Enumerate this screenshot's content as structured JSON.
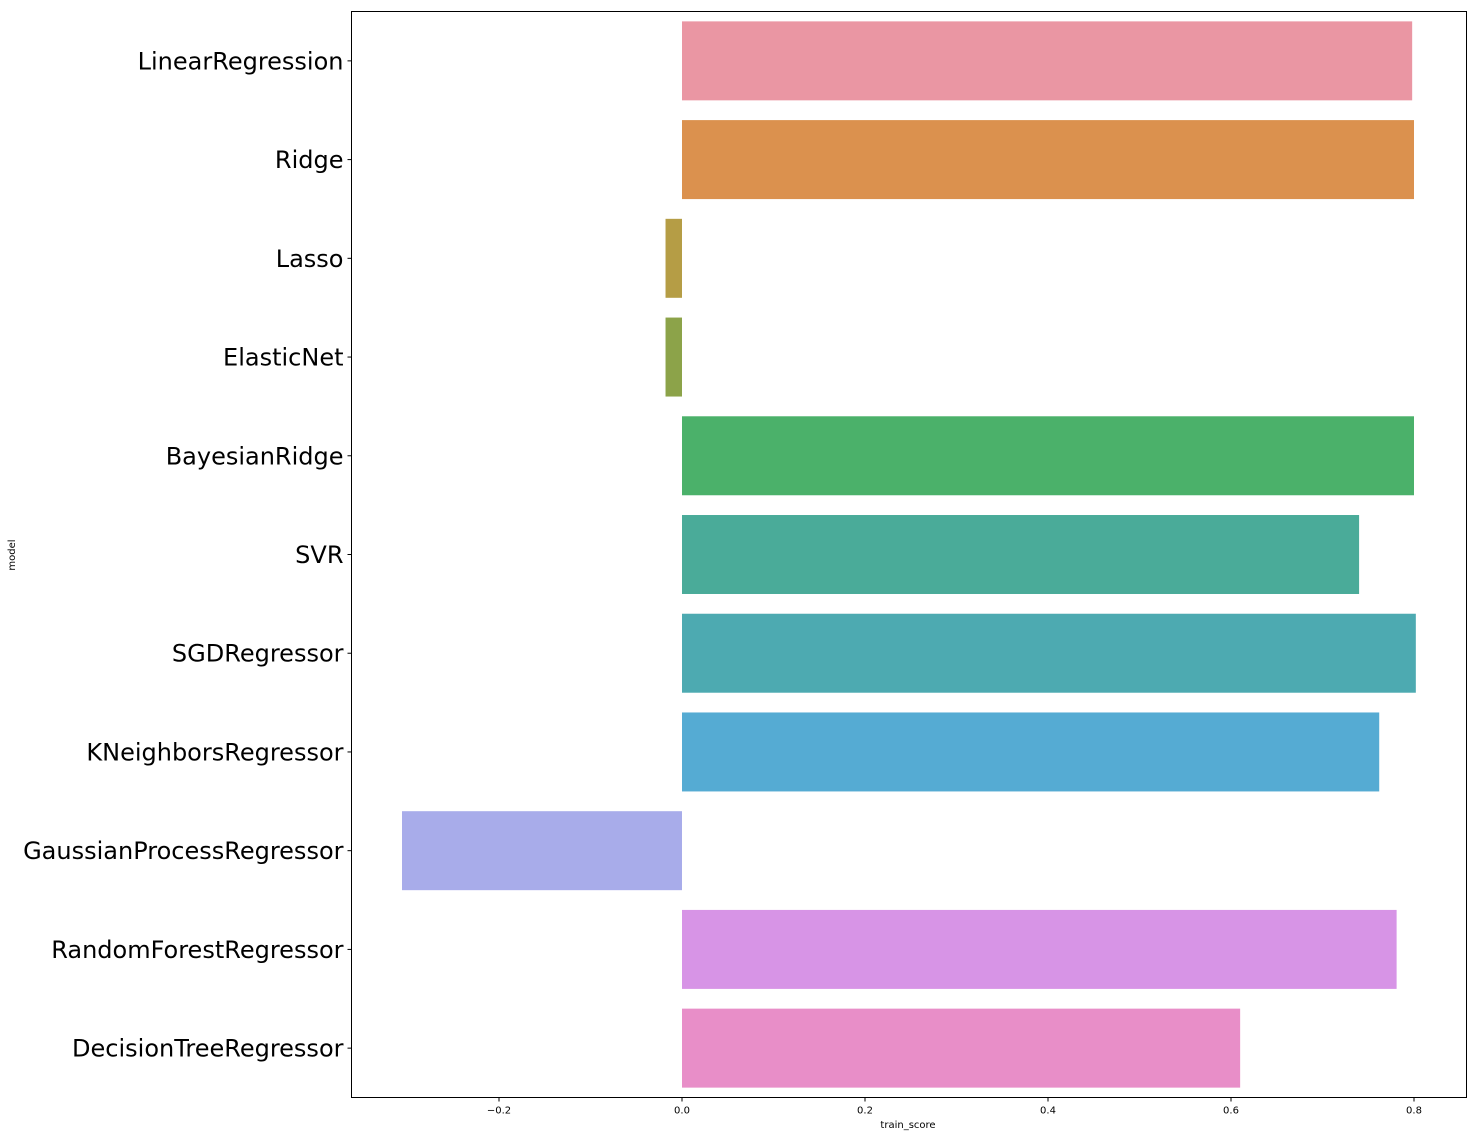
{
  "chart_data": {
    "type": "bar",
    "orientation": "horizontal",
    "title": "",
    "xlabel": "train_score",
    "ylabel": "model",
    "xlim": [
      -0.35,
      0.86
    ],
    "xticks": [
      -0.2,
      0.0,
      0.2,
      0.4,
      0.6,
      0.8
    ],
    "xtick_labels": [
      "−0.2",
      "0.0",
      "0.2",
      "0.4",
      "0.6",
      "0.8"
    ],
    "grid": false,
    "legend": "none",
    "categories": [
      "LinearRegression",
      "Ridge",
      "Lasso",
      "ElasticNet",
      "BayesianRidge",
      "SVR",
      "SGDRegressor",
      "KNeighborsRegressor",
      "GaussianProcessRegressor",
      "RandomForestRegressor",
      "DecisionTreeRegressor"
    ],
    "values": [
      0.798,
      0.8,
      -0.018,
      -0.018,
      0.8,
      0.74,
      0.802,
      0.762,
      -0.306,
      0.781,
      0.61
    ],
    "colors": [
      "#ea96a3",
      "#db914e",
      "#b59d45",
      "#8ca349",
      "#4bb16a",
      "#4aab99",
      "#4daab1",
      "#55abd3",
      "#a8acea",
      "#d794e6",
      "#e88ec8"
    ]
  }
}
